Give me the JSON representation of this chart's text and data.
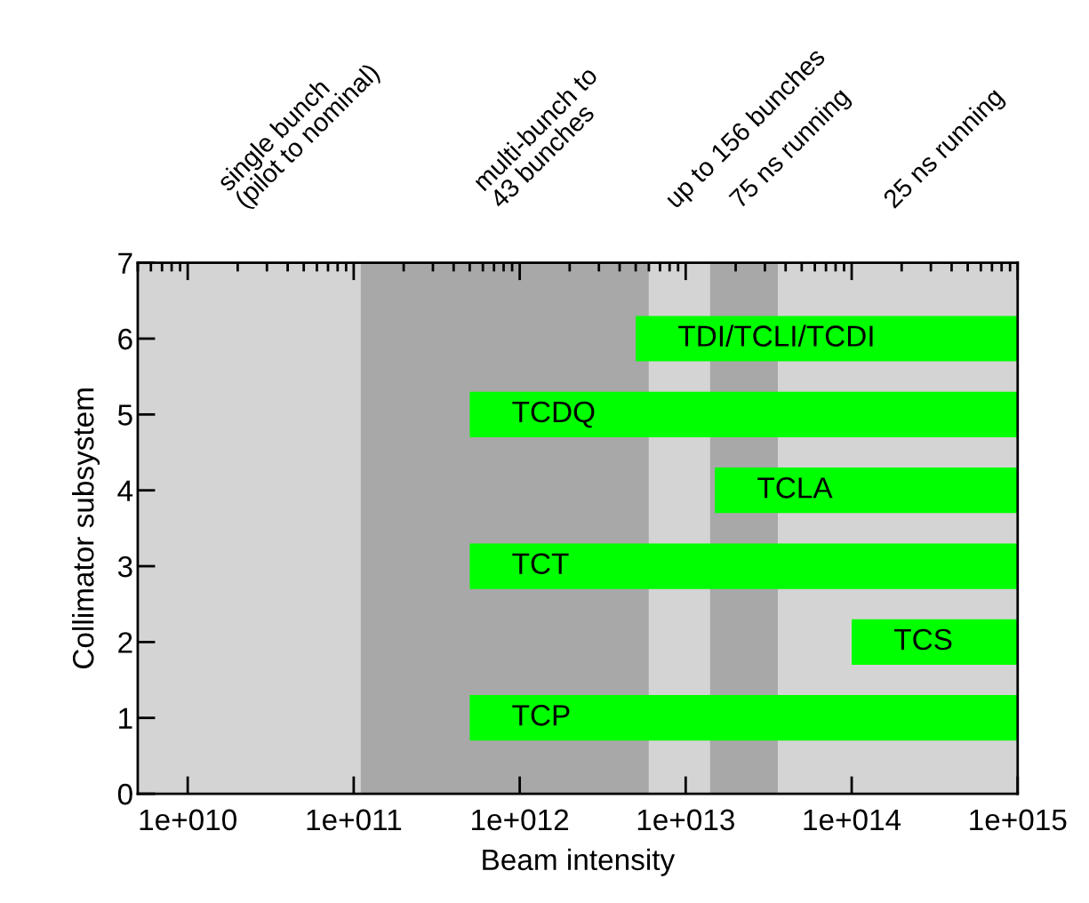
{
  "chart_data": {
    "type": "bar",
    "orientation": "horizontal",
    "xlabel": "Beam intensity",
    "ylabel": "Collimator subsystem",
    "categories": [
      "7",
      "6",
      "5",
      "4",
      "3",
      "2",
      "1",
      "0"
    ],
    "base": [
      null,
      5000000000000.0,
      500000000000.0,
      15000000000000.0,
      500000000000.0,
      100000000000000.0,
      500000000000.0,
      null
    ],
    "values": [
      null,
      995000000000000.0,
      999500000000000.0,
      985000000000000.0,
      999500000000000.0,
      900000000000000.0,
      999500000000000.0,
      null
    ],
    "color": "#00ff00",
    "log": "x",
    "xlim": [
      5000000000.0,
      1000000000000000.0
    ],
    "xticks": [
      {
        "value": 10000000000.0,
        "label": "1e+010"
      },
      {
        "value": 100000000000.0,
        "label": "1e+011"
      },
      {
        "value": 1000000000000.0,
        "label": "1e+012"
      },
      {
        "value": 10000000000000.0,
        "label": "1e+013"
      },
      {
        "value": 100000000000000.0,
        "label": "1e+014"
      },
      {
        "value": 1000000000000000.0,
        "label": "1e+015"
      }
    ],
    "annotations": [
      {
        "text": "TDI/TCLI/TCDI",
        "x": 5000000000000.0,
        "y": "6"
      },
      {
        "text": "TCDQ",
        "x": 500000000000.0,
        "y": "5"
      },
      {
        "text": "TCLA",
        "x": 15000000000000.0,
        "y": "4"
      },
      {
        "text": "TCT",
        "x": 500000000000.0,
        "y": "3"
      },
      {
        "text": "TCS",
        "x": 100000000000000.0,
        "y": "2"
      },
      {
        "text": "TCP",
        "x": 500000000000.0,
        "y": "1"
      }
    ],
    "bands": [
      {
        "axis": "x",
        "from": 5000000000.0,
        "to": 110000000000.0,
        "label": "single bunch\n(pilot to nominal)",
        "color": "#d4d4d4"
      },
      {
        "axis": "x",
        "from": 110000000000.0,
        "to": 6000000000000.0,
        "label": "multi-bunch to\n43 bunches",
        "color": "#a8a8a8"
      },
      {
        "axis": "x",
        "from": 6000000000000.0,
        "to": 14000000000000.0,
        "label": "up to 156 bunches",
        "color": "#d4d4d4"
      },
      {
        "axis": "x",
        "from": 14000000000000.0,
        "to": 36000000000000.0,
        "label": "75 ns running",
        "color": "#a8a8a8"
      },
      {
        "axis": "x",
        "from": 36000000000000.0,
        "to": 1000000000000000.0,
        "label": "25 ns running",
        "color": "#d4d4d4"
      }
    ]
  }
}
